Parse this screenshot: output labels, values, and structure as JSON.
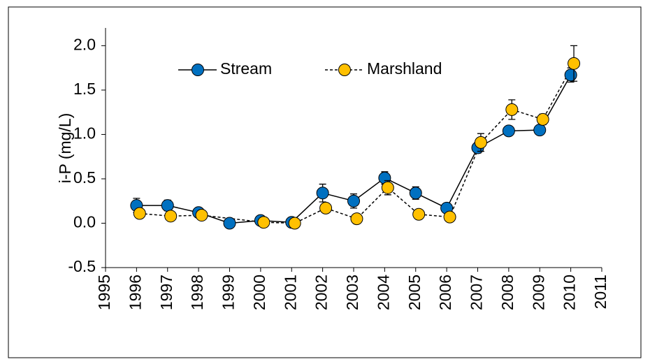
{
  "chart_data": {
    "type": "line",
    "ylabel": "i-P (mg/L)",
    "xlim": [
      1995,
      2011
    ],
    "xticks": [
      1995,
      1996,
      1997,
      1998,
      1999,
      2000,
      2001,
      2002,
      2003,
      2004,
      2005,
      2006,
      2007,
      2008,
      2009,
      2010,
      2011
    ],
    "ylim": [
      -0.5,
      2.2
    ],
    "yticks": [
      {
        "value": -0.5,
        "label": "-0.5"
      },
      {
        "value": 0,
        "label": "0.0"
      },
      {
        "value": 0.5,
        "label": "0.5"
      },
      {
        "value": 1,
        "label": "1.0"
      },
      {
        "value": 1.5,
        "label": "1.5"
      },
      {
        "value": 2,
        "label": "2.0"
      }
    ],
    "series": [
      {
        "name": "Stream",
        "color": "#0070c0",
        "dash": false,
        "x": [
          1996,
          1997,
          1998,
          1999,
          2000,
          2001,
          2002,
          2003,
          2004,
          2005,
          2006,
          2007,
          2008,
          2009,
          2010
        ],
        "values": [
          0.2,
          0.2,
          0.12,
          0.0,
          0.03,
          0.01,
          0.34,
          0.25,
          0.51,
          0.34,
          0.17,
          0.85,
          1.04,
          1.05,
          1.67
        ],
        "errors": [
          0.08,
          0.06,
          null,
          null,
          null,
          null,
          0.1,
          0.08,
          0.07,
          0.07,
          null,
          0.06,
          null,
          null,
          0.08
        ]
      },
      {
        "name": "Marshland",
        "color": "#ffc000",
        "dash": true,
        "x": [
          1996.1,
          1997.1,
          1998.1,
          2000.1,
          2001.1,
          2002.1,
          2003.1,
          2004.1,
          2005.1,
          2006.1,
          2007.1,
          2008.1,
          2009.1,
          2010.1
        ],
        "values": [
          0.11,
          0.08,
          0.09,
          0.01,
          0.0,
          0.17,
          0.05,
          0.4,
          0.1,
          0.07,
          0.91,
          1.28,
          1.17,
          1.8
        ],
        "errors": [
          null,
          null,
          null,
          null,
          null,
          0.05,
          null,
          0.08,
          null,
          null,
          0.1,
          0.11,
          0.06,
          0.2
        ]
      }
    ]
  }
}
